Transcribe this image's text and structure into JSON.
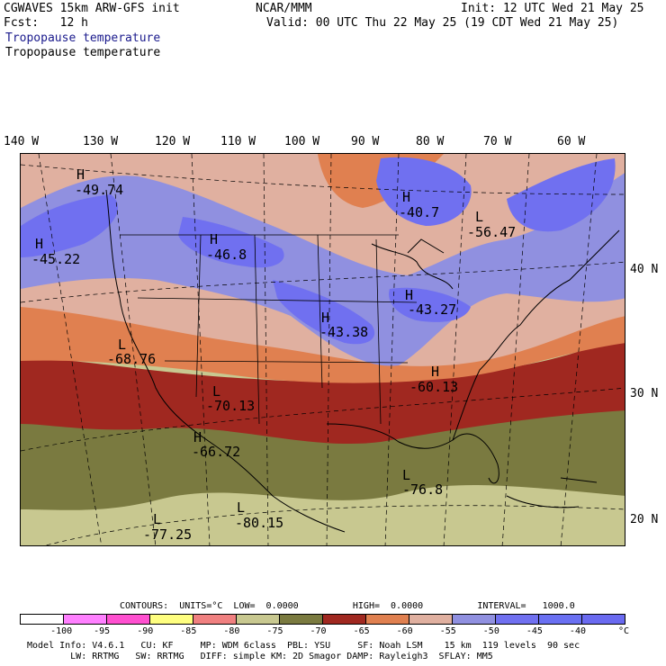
{
  "header": {
    "model": "CGWAVES 15km ARW-GFS init",
    "center": "NCAR/MMM",
    "init": "Init: 12 UTC Wed 21 May 25",
    "fcst": "Fcst:   12 h",
    "valid": "Valid: 00 UTC Thu 22 May 25 (19 CDT Wed 21 May 25)",
    "field1": "Tropopause temperature",
    "field2": "Tropopause temperature"
  },
  "map": {
    "lon_labels": [
      "140 W",
      "130 W",
      "120 W",
      "110 W",
      "100 W",
      "90 W",
      "80 W",
      "70 W",
      "60 W"
    ],
    "lat_labels": [
      "40 N",
      "30 N",
      "20 N"
    ],
    "centers": [
      {
        "letter": "H",
        "value": "-49.74"
      },
      {
        "letter": "H",
        "value": "-45.22"
      },
      {
        "letter": "H",
        "value": "-46.8"
      },
      {
        "letter": "H",
        "value": "-40.7"
      },
      {
        "letter": "L",
        "value": "-56.47"
      },
      {
        "letter": "H",
        "value": "-43.27"
      },
      {
        "letter": "H",
        "value": "-43.38"
      },
      {
        "letter": "L",
        "value": "-68.76"
      },
      {
        "letter": "L",
        "value": "-70.13"
      },
      {
        "letter": "H",
        "value": "-66.72"
      },
      {
        "letter": "H",
        "value": "-60.13"
      },
      {
        "letter": "L",
        "value": "-76.8"
      },
      {
        "letter": "L",
        "value": "-77.25"
      },
      {
        "letter": "L",
        "value": "-80.15"
      }
    ]
  },
  "contours_line": "CONTOURS:  UNITS=°C  LOW=  0.0000          HIGH=  0.0000          INTERVAL=   1000.0",
  "colorbar": {
    "colors": [
      "#ffffff",
      "#ff80ff",
      "#ff50d0",
      "#ffff80",
      "#f08080",
      "#c8c890",
      "#7a7a40",
      "#a02820",
      "#e08050",
      "#e0b0a0",
      "#9090e0",
      "#7070f0",
      "#6a70f2",
      "#6a6af0"
    ],
    "labels": [
      "-100",
      "-95",
      "-90",
      "-85",
      "-80",
      "-75",
      "-70",
      "-65",
      "-60",
      "-55",
      "-50",
      "-45",
      "-40",
      "°C"
    ]
  },
  "footer": {
    "line1": "Model Info: V4.6.1   CU: KF     MP: WDM 6class  PBL: YSU     SF: Noah LSM    15 km  119 levels  90 sec",
    "line2": "        LW: RRTMG   SW: RRTMG   DIFF: simple KM: 2D Smagor DAMP: Rayleigh3  SFLAY: MM5"
  }
}
